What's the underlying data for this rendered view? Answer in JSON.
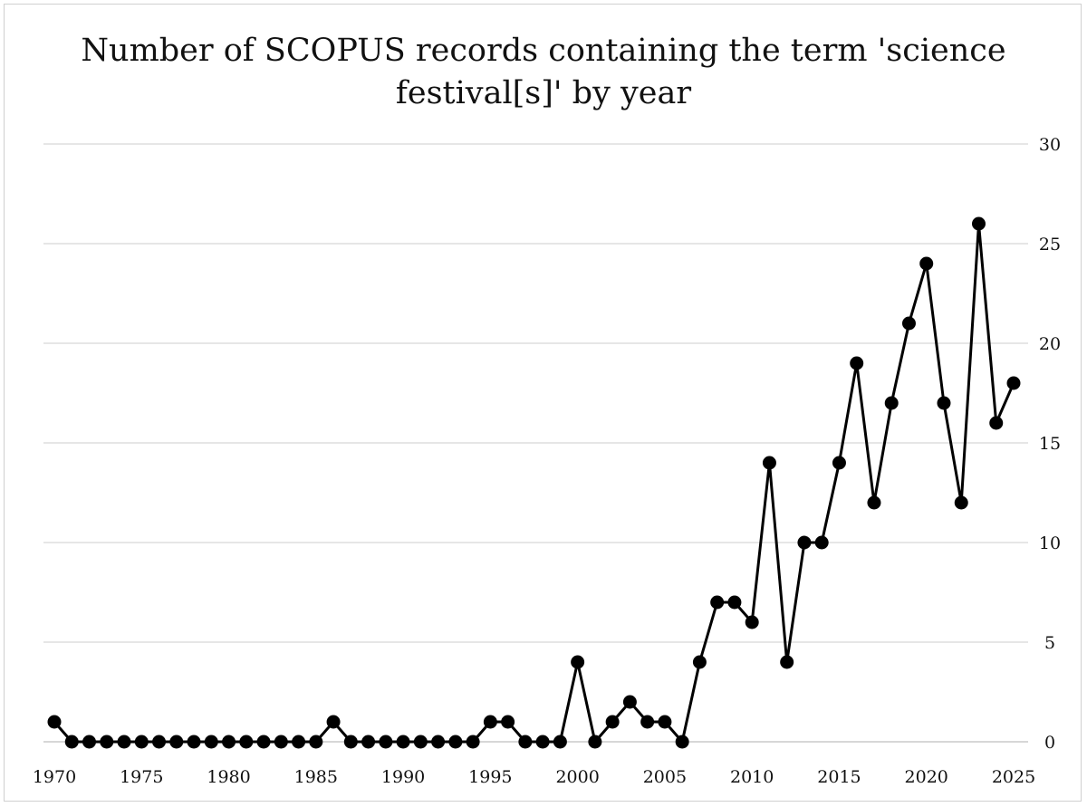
{
  "chart_data": {
    "type": "line",
    "title_lines": [
      "Number of SCOPUS records containing the term 'science",
      "festival[s]' by year"
    ],
    "xlabel": "",
    "ylabel": "",
    "x": [
      1970,
      1971,
      1972,
      1973,
      1974,
      1975,
      1976,
      1977,
      1978,
      1979,
      1980,
      1981,
      1982,
      1983,
      1984,
      1985,
      1986,
      1987,
      1988,
      1989,
      1990,
      1991,
      1992,
      1993,
      1994,
      1995,
      1996,
      1997,
      1998,
      1999,
      2000,
      2001,
      2002,
      2003,
      2004,
      2005,
      2006,
      2007,
      2008,
      2009,
      2010,
      2011,
      2012,
      2013,
      2014,
      2015,
      2016,
      2017,
      2018,
      2019,
      2020,
      2021,
      2022,
      2023,
      2024,
      2025
    ],
    "series": [
      {
        "values": [
          1,
          0,
          0,
          0,
          0,
          0,
          0,
          0,
          0,
          0,
          0,
          0,
          0,
          0,
          0,
          0,
          1,
          0,
          0,
          0,
          0,
          0,
          0,
          0,
          0,
          1,
          1,
          0,
          0,
          0,
          4,
          0,
          1,
          2,
          1,
          1,
          0,
          4,
          7,
          7,
          6,
          14,
          4,
          10,
          10,
          14,
          19,
          12,
          17,
          21,
          24,
          17,
          12,
          26,
          16,
          18
        ]
      }
    ],
    "xlim": [
      1970,
      2025
    ],
    "ylim": [
      0,
      30
    ],
    "x_ticks": [
      "1970",
      "1975",
      "1980",
      "1985",
      "1990",
      "1995",
      "2000",
      "2005",
      "2010",
      "2015",
      "2020",
      "2025"
    ],
    "y_ticks": [
      "0",
      "5",
      "10",
      "15",
      "20",
      "25",
      "30"
    ],
    "y_axis_side": "right",
    "grid": true,
    "legend": "none",
    "colors": {
      "line": "#000000",
      "grid": "#d6d6d6"
    }
  }
}
